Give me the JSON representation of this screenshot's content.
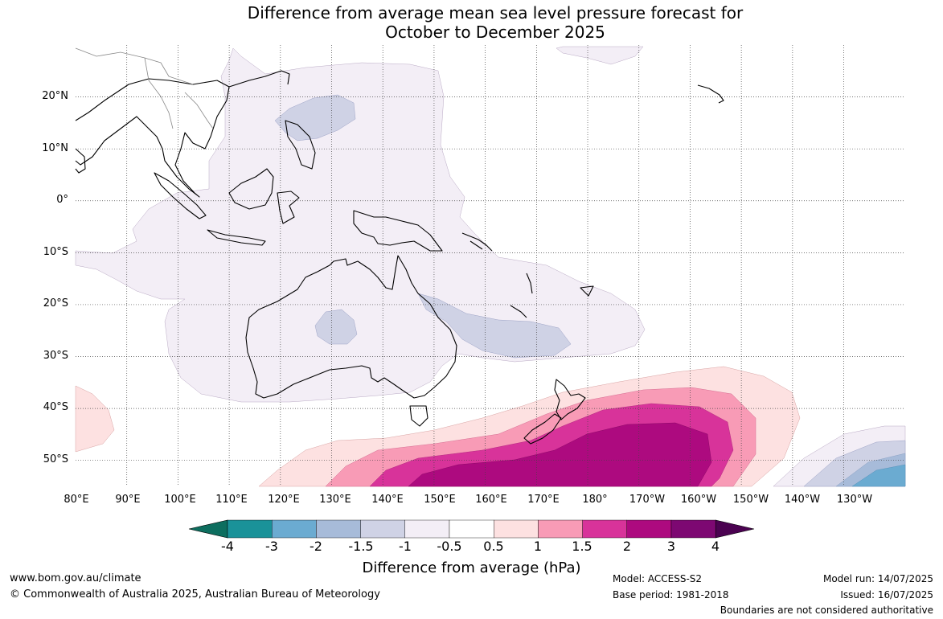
{
  "title": {
    "line1": "Difference from average mean sea level pressure forecast for",
    "line2": "October to December 2025"
  },
  "map": {
    "lat_labels": [
      "20°N",
      "10°N",
      "0°",
      "10°S",
      "20°S",
      "30°S",
      "40°S",
      "50°S"
    ],
    "lon_labels": [
      "80°E",
      "90°E",
      "100°E",
      "110°E",
      "120°E",
      "130°E",
      "140°E",
      "150°E",
      "160°E",
      "170°E",
      "180°",
      "170°W",
      "160°W",
      "150°W",
      "140°W",
      "130°W"
    ],
    "extent": {
      "lon": [
        80,
        242
      ],
      "lat": [
        -55,
        30
      ]
    },
    "gridlines": true
  },
  "colorbar": {
    "ticks": [
      "-4",
      "-3",
      "-2",
      "-1.5",
      "-1",
      "-0.5",
      "0.5",
      "1",
      "1.5",
      "2",
      "3",
      "4"
    ],
    "colors": [
      "#0d6e5f",
      "#1a9299",
      "#6babd1",
      "#a7bbd9",
      "#cfd2e5",
      "#f3eef6",
      "#ffffff",
      "#fde1e1",
      "#f89bb6",
      "#d8339a",
      "#ad0a7f",
      "#7d0872",
      "#4b0251"
    ],
    "label": "Difference from average (hPa)"
  },
  "footer": {
    "website": "www.bom.gov.au/climate",
    "copyright": "© Commonwealth of Australia 2025, Australian Bureau of Meteorology",
    "model": "Model: ACCESS-S2",
    "base_period": "Base period: 1981-2018",
    "model_run": "Model run: 14/07/2025",
    "issued": "Issued: 16/07/2025",
    "disclaimer": "Boundaries are not considered authoritative"
  }
}
